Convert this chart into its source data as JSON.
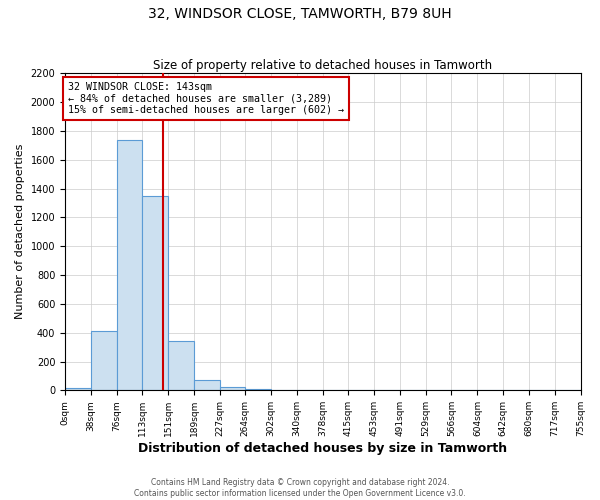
{
  "title": "32, WINDSOR CLOSE, TAMWORTH, B79 8UH",
  "subtitle": "Size of property relative to detached houses in Tamworth",
  "xlabel": "Distribution of detached houses by size in Tamworth",
  "ylabel": "Number of detached properties",
  "bar_color": "#cce0f0",
  "bar_edge_color": "#5b9bd5",
  "property_line_x": 143,
  "property_line_color": "#cc0000",
  "annotation_line1": "32 WINDSOR CLOSE: 143sqm",
  "annotation_line2": "← 84% of detached houses are smaller (3,289)",
  "annotation_line3": "15% of semi-detached houses are larger (602) →",
  "annotation_box_color": "white",
  "annotation_box_edge_color": "#cc0000",
  "footnote1": "Contains HM Land Registry data © Crown copyright and database right 2024.",
  "footnote2": "Contains public sector information licensed under the Open Government Licence v3.0.",
  "bin_edges": [
    0,
    38,
    76,
    113,
    151,
    189,
    227,
    264,
    302,
    340,
    378,
    415,
    453,
    491,
    529,
    566,
    604,
    642,
    680,
    717,
    755
  ],
  "bin_counts": [
    15,
    410,
    1735,
    1350,
    340,
    75,
    25,
    10,
    0,
    0,
    0,
    0,
    0,
    0,
    0,
    0,
    0,
    0,
    0,
    0
  ],
  "ylim": [
    0,
    2200
  ],
  "yticks": [
    0,
    200,
    400,
    600,
    800,
    1000,
    1200,
    1400,
    1600,
    1800,
    2000,
    2200
  ],
  "grid_color": "#cccccc",
  "background_color": "#ffffff",
  "figsize": [
    6.0,
    5.0
  ],
  "dpi": 100
}
